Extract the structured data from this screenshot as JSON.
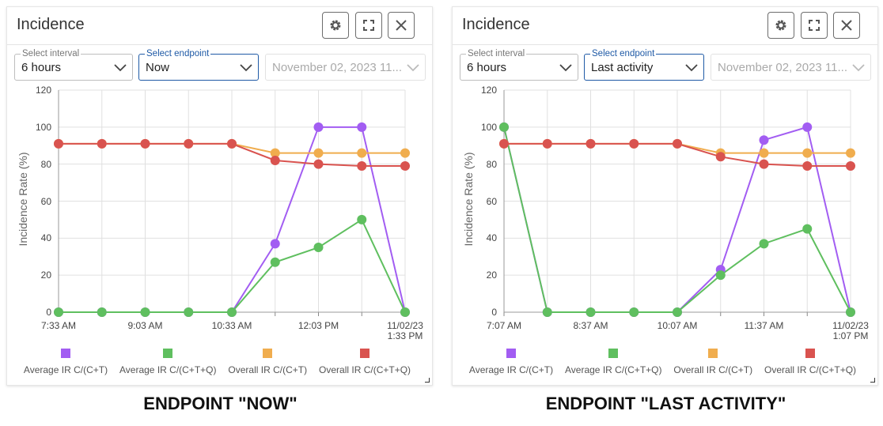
{
  "panels": [
    {
      "title": "Incidence",
      "interval_label": "Select interval",
      "interval_value": "6 hours",
      "endpoint_label": "Select endpoint",
      "endpoint_value": "Now",
      "date_value": "November 02, 2023 11...",
      "caption": "ENDPOINT \"NOW\""
    },
    {
      "title": "Incidence",
      "interval_label": "Select interval",
      "interval_value": "6 hours",
      "endpoint_label": "Select endpoint",
      "endpoint_value": "Last activity",
      "date_value": "November 02, 2023 11...",
      "caption": "ENDPOINT \"LAST ACTIVITY\""
    }
  ],
  "chart_data": [
    {
      "type": "line",
      "y_label": "Incidence Rate (%)",
      "categories": [
        "7:33 AM",
        null,
        "9:03 AM",
        null,
        "10:33 AM",
        null,
        "12:03 PM",
        null,
        "11/02/23\n1:33 PM"
      ],
      "series": [
        {
          "name": "Average IR C/(C+T)",
          "color": "#a25df2",
          "values": [
            0,
            0,
            0,
            0,
            0,
            37,
            100,
            100,
            0
          ]
        },
        {
          "name": "Average IR C/(C+T+Q)",
          "color": "#5fbf5f",
          "values": [
            0,
            0,
            0,
            0,
            0,
            27,
            35,
            50,
            0
          ]
        },
        {
          "name": "Overall IR C/(C+T)",
          "color": "#f0ad4e",
          "values": [
            91,
            91,
            91,
            91,
            91,
            86,
            86,
            86,
            86
          ]
        },
        {
          "name": "Overall IR C/(C+T+Q)",
          "color": "#d9534f",
          "values": [
            91,
            91,
            91,
            91,
            91,
            82,
            80,
            79,
            79
          ]
        }
      ],
      "ylim": [
        0,
        120
      ],
      "yticks": [
        0,
        20,
        40,
        60,
        80,
        100,
        120
      ],
      "grid": true,
      "legend": "bottom"
    },
    {
      "type": "line",
      "y_label": "Incidence Rate (%)",
      "categories": [
        "7:07 AM",
        null,
        "8:37 AM",
        null,
        "10:07 AM",
        null,
        "11:37 AM",
        null,
        "11/02/23\n1:07 PM"
      ],
      "series": [
        {
          "name": "Average IR C/(C+T)",
          "color": "#a25df2",
          "values": [
            100,
            0,
            0,
            0,
            0,
            23,
            93,
            100,
            0
          ]
        },
        {
          "name": "Average IR C/(C+T+Q)",
          "color": "#5fbf5f",
          "values": [
            100,
            0,
            0,
            0,
            0,
            20,
            37,
            45,
            0
          ]
        },
        {
          "name": "Overall IR C/(C+T)",
          "color": "#f0ad4e",
          "values": [
            91,
            91,
            91,
            91,
            91,
            86,
            86,
            86,
            86
          ]
        },
        {
          "name": "Overall IR C/(C+T+Q)",
          "color": "#d9534f",
          "values": [
            91,
            91,
            91,
            91,
            91,
            84,
            80,
            79,
            79
          ]
        }
      ],
      "ylim": [
        0,
        120
      ],
      "yticks": [
        0,
        20,
        40,
        60,
        80,
        100,
        120
      ],
      "grid": true,
      "legend": "bottom"
    }
  ]
}
